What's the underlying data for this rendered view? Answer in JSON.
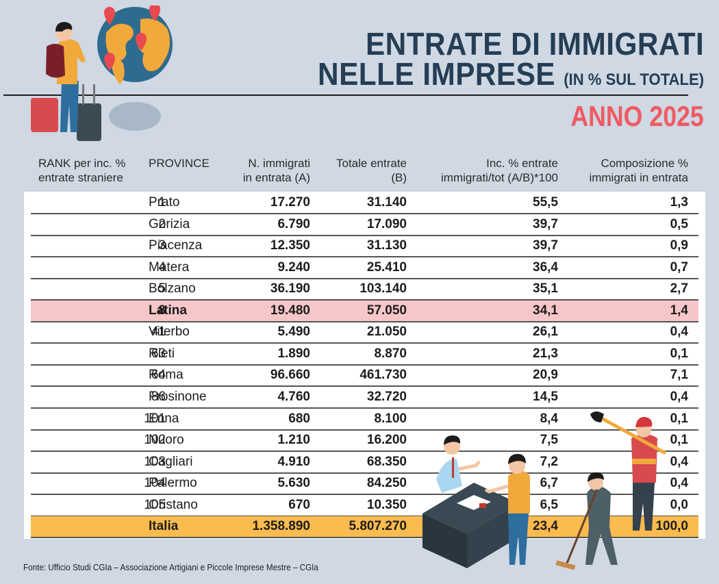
{
  "header": {
    "title_line1": "ENTRATE DI IMMIGRATI",
    "title_line2": "NELLE IMPRESE",
    "title_sub": "(IN % SUL TOTALE)",
    "year_label": "ANNO 2025"
  },
  "colors": {
    "background": "#cfd8e3",
    "title": "#253e56",
    "year": "#ef5a62",
    "highlight_row": "#f6c6c8",
    "total_row": "#fbbb4e"
  },
  "columns": {
    "rank": [
      "RANK per inc. %",
      "entrate straniere"
    ],
    "province": [
      "PROVINCE",
      ""
    ],
    "immigrants": [
      "N. immigrati",
      "in entrata (A)"
    ],
    "total": [
      "Totale entrate",
      "(B)"
    ],
    "incidence": [
      "Inc. % entrate",
      "immigrati/tot (A/B)*100"
    ],
    "composition": [
      "Composizione %",
      "immigrati in entrata"
    ]
  },
  "chart_data": {
    "type": "table",
    "title": "ENTRATE DI IMMIGRATI NELLE IMPRESE (IN % SUL TOTALE) - ANNO 2025",
    "headers": [
      "RANK per inc. % entrate straniere",
      "PROVINCE",
      "N. immigrati in entrata (A)",
      "Totale entrate (B)",
      "Inc. % entrate immigrati/tot (A/B)*100",
      "Composizione % immigrati in entrata"
    ],
    "rows": [
      {
        "rank": "1",
        "province": "Prato",
        "immigrants": "17.270",
        "total": "31.140",
        "incidence": "55,5",
        "composition": "1,3"
      },
      {
        "rank": "2",
        "province": "Gorizia",
        "immigrants": "6.790",
        "total": "17.090",
        "incidence": "39,7",
        "composition": "0,5"
      },
      {
        "rank": "3",
        "province": "Piacenza",
        "immigrants": "12.350",
        "total": "31.130",
        "incidence": "39,7",
        "composition": "0,9"
      },
      {
        "rank": "4",
        "province": "Matera",
        "immigrants": "9.240",
        "total": "25.410",
        "incidence": "36,4",
        "composition": "0,7"
      },
      {
        "rank": "5",
        "province": "Bolzano",
        "immigrants": "36.190",
        "total": "103.140",
        "incidence": "35,1",
        "composition": "2,7"
      },
      {
        "rank": "8",
        "province": "Latina",
        "immigrants": "19.480",
        "total": "57.050",
        "incidence": "34,1",
        "composition": "1,4",
        "highlight": true
      },
      {
        "rank": "41",
        "province": "Viterbo",
        "immigrants": "5.490",
        "total": "21.050",
        "incidence": "26,1",
        "composition": "0,4"
      },
      {
        "rank": "63",
        "province": "Rieti",
        "immigrants": "1.890",
        "total": "8.870",
        "incidence": "21,3",
        "composition": "0,1"
      },
      {
        "rank": "64",
        "province": "Roma",
        "immigrants": "96.660",
        "total": "461.730",
        "incidence": "20,9",
        "composition": "7,1"
      },
      {
        "rank": "86",
        "province": "Frosinone",
        "immigrants": "4.760",
        "total": "32.720",
        "incidence": "14,5",
        "composition": "0,4"
      },
      {
        "rank": "101",
        "province": "Enna",
        "immigrants": "680",
        "total": "8.100",
        "incidence": "8,4",
        "composition": "0,1"
      },
      {
        "rank": "102",
        "province": "Nuoro",
        "immigrants": "1.210",
        "total": "16.200",
        "incidence": "7,5",
        "composition": "0,1"
      },
      {
        "rank": "103",
        "province": "Cagliari",
        "immigrants": "4.910",
        "total": "68.350",
        "incidence": "7,2",
        "composition": "0,4"
      },
      {
        "rank": "104",
        "province": "Palermo",
        "immigrants": "5.630",
        "total": "84.250",
        "incidence": "6,7",
        "composition": "0,4"
      },
      {
        "rank": "105",
        "province": "Oristano",
        "immigrants": "670",
        "total": "10.350",
        "incidence": "6,5",
        "composition": "0,0"
      },
      {
        "rank": "",
        "province": "Italia",
        "immigrants": "1.358.890",
        "total": "5.807.270",
        "incidence": "23,4",
        "composition": "100,0",
        "total_row": true
      }
    ]
  },
  "footer": {
    "source": "Fonte: Ufficio Studi CGIa – Associazione Artigiani e Piccole Imprese Mestre – CGIa"
  },
  "illustrations": {
    "top_left": "traveler-with-globe-icon",
    "bottom_right": "workers-illustration"
  }
}
